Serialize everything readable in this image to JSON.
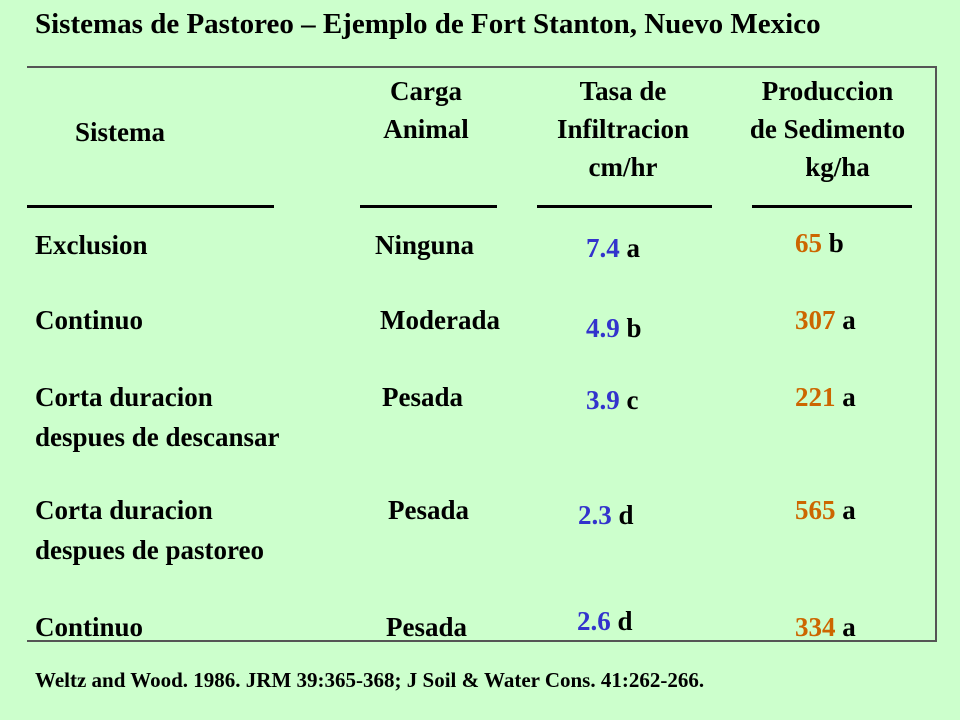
{
  "title": "Sistemas de Pastoreo – Ejemplo de Fort Stanton, Nuevo Mexico",
  "headers": {
    "sistema": "Sistema",
    "carga_1": "Carga",
    "carga_2": "Animal",
    "tasa_1": "Tasa de",
    "tasa_2": "Infiltracion",
    "tasa_3": "cm/hr",
    "prod_1": "Produccion",
    "prod_2": "de Sedimento",
    "prod_3": "kg/ha"
  },
  "rows": [
    {
      "sistema_1": "Exclusion",
      "sistema_2": "",
      "carga": "Ninguna",
      "tasa": "7.4",
      "tasa_letter": "a",
      "prod": "65",
      "prod_letter": "b"
    },
    {
      "sistema_1": "Continuo",
      "sistema_2": "",
      "carga": "Moderada",
      "tasa": "4.9",
      "tasa_letter": "b",
      "prod": "307",
      "prod_letter": "a"
    },
    {
      "sistema_1": "Corta duracion",
      "sistema_2": "despues de descansar",
      "carga": "Pesada",
      "tasa": "3.9",
      "tasa_letter": "c",
      "prod": "221",
      "prod_letter": "a"
    },
    {
      "sistema_1": "Corta duracion",
      "sistema_2": "despues de pastoreo",
      "carga": "Pesada",
      "tasa": "2.3",
      "tasa_letter": "d",
      "prod": "565",
      "prod_letter": "a"
    },
    {
      "sistema_1": "Continuo",
      "sistema_2": "",
      "carga": "Pesada",
      "tasa": "2.6",
      "tasa_letter": "d",
      "prod": "334",
      "prod_letter": "a"
    }
  ],
  "footer": "Weltz and Wood.  1986.  JRM 39:365-368; J Soil & Water Cons. 41:262-266.",
  "colors": {
    "background": "#CCFFCC",
    "infiltration_value": "#3333CC",
    "sediment_value": "#CC6600"
  }
}
